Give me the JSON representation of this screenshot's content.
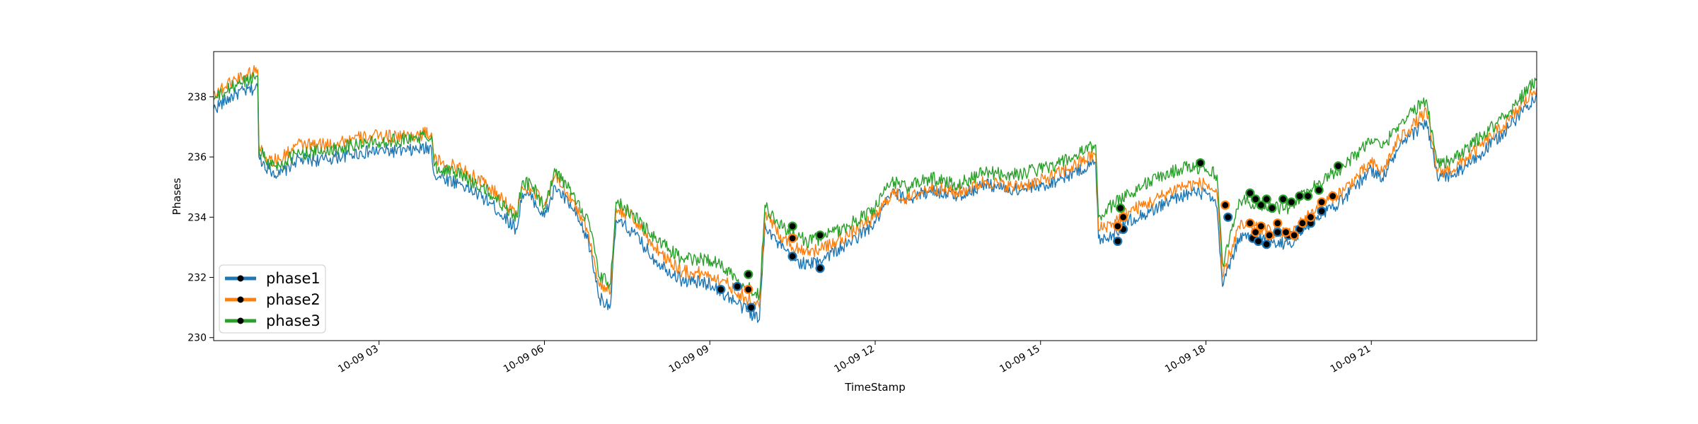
{
  "chart_data": {
    "type": "line",
    "xlabel": "TimeStamp",
    "ylabel": "Phases",
    "x_tick_labels": [
      "10-09 03",
      "10-09 06",
      "10-09 09",
      "10-09 12",
      "10-09 15",
      "10-09 18",
      "10-09 21"
    ],
    "x_tick_hours": [
      3,
      6,
      9,
      12,
      15,
      18,
      21
    ],
    "xlim_hours": [
      0,
      24
    ],
    "y_ticks": [
      230,
      232,
      234,
      236,
      238
    ],
    "ylim": [
      229.9,
      239.5
    ],
    "legend_position": "lower-left",
    "grid": false,
    "x_hours": [
      0.0,
      0.4,
      0.8,
      0.82,
      1.0,
      1.2,
      1.5,
      2.0,
      2.5,
      3.0,
      3.5,
      3.95,
      4.0,
      4.5,
      5.0,
      5.5,
      5.6,
      5.8,
      6.0,
      6.2,
      6.5,
      6.8,
      7.0,
      7.2,
      7.3,
      7.6,
      8.0,
      8.5,
      9.0,
      9.3,
      9.6,
      9.9,
      10.0,
      10.2,
      10.5,
      10.8,
      11.0,
      11.5,
      12.0,
      12.3,
      12.6,
      13.0,
      13.5,
      14.0,
      14.5,
      15.0,
      15.5,
      16.0,
      16.05,
      16.3,
      16.6,
      17.0,
      17.5,
      17.8,
      18.0,
      18.2,
      18.3,
      18.4,
      18.6,
      19.0,
      19.5,
      20.0,
      20.5,
      21.0,
      21.2,
      21.5,
      22.0,
      22.2,
      22.5,
      23.0,
      23.5,
      24.0
    ],
    "series": [
      {
        "name": "phase1",
        "color": "#1f77b4",
        "values": [
          237.6,
          238.1,
          238.3,
          236.0,
          235.6,
          235.4,
          235.9,
          235.9,
          236.1,
          236.2,
          236.2,
          236.3,
          235.4,
          235.1,
          234.5,
          233.6,
          234.8,
          234.6,
          234.0,
          235.0,
          234.3,
          233.2,
          231.3,
          231.1,
          233.9,
          233.5,
          232.6,
          231.9,
          231.8,
          231.4,
          231.0,
          230.6,
          233.8,
          233.2,
          232.6,
          232.4,
          232.6,
          233.1,
          233.8,
          234.8,
          234.6,
          234.9,
          234.7,
          235.1,
          234.9,
          235.0,
          235.4,
          235.8,
          233.3,
          233.4,
          233.9,
          234.2,
          234.7,
          234.8,
          234.8,
          234.3,
          231.7,
          232.3,
          233.3,
          233.3,
          233.1,
          234.0,
          234.6,
          235.6,
          235.3,
          236.3,
          237.2,
          235.3,
          235.4,
          236.1,
          237.0,
          238.1
        ]
      },
      {
        "name": "phase2",
        "color": "#ff7f0e",
        "values": [
          238.1,
          238.6,
          238.9,
          236.4,
          235.9,
          235.9,
          236.4,
          236.4,
          236.6,
          236.7,
          236.7,
          236.8,
          235.9,
          235.6,
          235.0,
          234.1,
          235.0,
          234.9,
          234.4,
          235.4,
          234.6,
          233.5,
          231.7,
          231.5,
          234.3,
          234.0,
          233.0,
          232.2,
          232.1,
          231.8,
          231.4,
          231.0,
          234.1,
          233.6,
          233.0,
          232.9,
          232.9,
          233.4,
          234.0,
          234.8,
          234.6,
          235.0,
          234.8,
          235.2,
          235.0,
          235.2,
          235.6,
          236.1,
          233.6,
          233.8,
          234.2,
          234.5,
          235.0,
          235.1,
          235.1,
          234.8,
          232.0,
          232.6,
          233.7,
          233.6,
          233.4,
          234.3,
          234.9,
          235.8,
          235.5,
          236.6,
          237.5,
          235.5,
          235.6,
          236.4,
          237.2,
          238.3
        ]
      },
      {
        "name": "phase3",
        "color": "#2ca02c",
        "values": [
          237.9,
          238.4,
          238.7,
          236.3,
          235.8,
          235.7,
          236.1,
          236.2,
          236.4,
          236.5,
          236.6,
          236.7,
          235.7,
          235.4,
          234.8,
          234.0,
          235.2,
          235.0,
          234.3,
          235.5,
          234.8,
          233.9,
          232.0,
          231.8,
          234.5,
          234.1,
          233.3,
          232.6,
          232.6,
          232.3,
          231.8,
          231.4,
          234.4,
          233.9,
          233.4,
          233.2,
          233.3,
          233.7,
          234.3,
          235.2,
          235.0,
          235.3,
          235.1,
          235.5,
          235.4,
          235.6,
          235.9,
          236.4,
          234.0,
          234.4,
          234.8,
          235.2,
          235.6,
          235.7,
          235.6,
          235.4,
          232.5,
          233.0,
          234.6,
          234.4,
          234.3,
          235.1,
          235.7,
          236.6,
          236.3,
          237.1,
          237.9,
          235.8,
          235.9,
          236.7,
          237.5,
          238.6
        ]
      }
    ],
    "anomaly_markers": [
      {
        "series": "phase1",
        "points": [
          [
            9.2,
            231.6
          ],
          [
            9.5,
            231.7
          ],
          [
            9.75,
            231.0
          ],
          [
            10.5,
            232.7
          ],
          [
            11.0,
            232.3
          ],
          [
            16.4,
            233.2
          ],
          [
            16.5,
            233.6
          ],
          [
            18.4,
            234.0
          ],
          [
            18.85,
            233.3
          ],
          [
            18.95,
            233.2
          ],
          [
            19.1,
            233.1
          ],
          [
            19.3,
            233.5
          ],
          [
            19.5,
            233.4
          ],
          [
            19.7,
            233.6
          ],
          [
            19.9,
            233.8
          ],
          [
            20.1,
            234.2
          ]
        ]
      },
      {
        "series": "phase2",
        "points": [
          [
            9.7,
            231.6
          ],
          [
            10.5,
            233.3
          ],
          [
            16.4,
            233.7
          ],
          [
            16.5,
            234.0
          ],
          [
            18.35,
            234.4
          ],
          [
            18.8,
            233.8
          ],
          [
            18.9,
            233.5
          ],
          [
            19.0,
            233.7
          ],
          [
            19.15,
            233.4
          ],
          [
            19.3,
            233.8
          ],
          [
            19.45,
            233.5
          ],
          [
            19.6,
            233.4
          ],
          [
            19.75,
            233.8
          ],
          [
            19.9,
            234.0
          ],
          [
            20.1,
            234.5
          ],
          [
            20.3,
            234.7
          ]
        ]
      },
      {
        "series": "phase3",
        "points": [
          [
            9.7,
            232.1
          ],
          [
            10.5,
            233.7
          ],
          [
            11.0,
            233.4
          ],
          [
            16.45,
            234.3
          ],
          [
            17.9,
            235.8
          ],
          [
            18.8,
            234.8
          ],
          [
            18.9,
            234.6
          ],
          [
            19.0,
            234.4
          ],
          [
            19.1,
            234.6
          ],
          [
            19.2,
            234.3
          ],
          [
            19.4,
            234.6
          ],
          [
            19.55,
            234.5
          ],
          [
            19.7,
            234.7
          ],
          [
            19.85,
            234.7
          ],
          [
            20.05,
            234.9
          ],
          [
            20.4,
            235.7
          ]
        ]
      }
    ]
  }
}
